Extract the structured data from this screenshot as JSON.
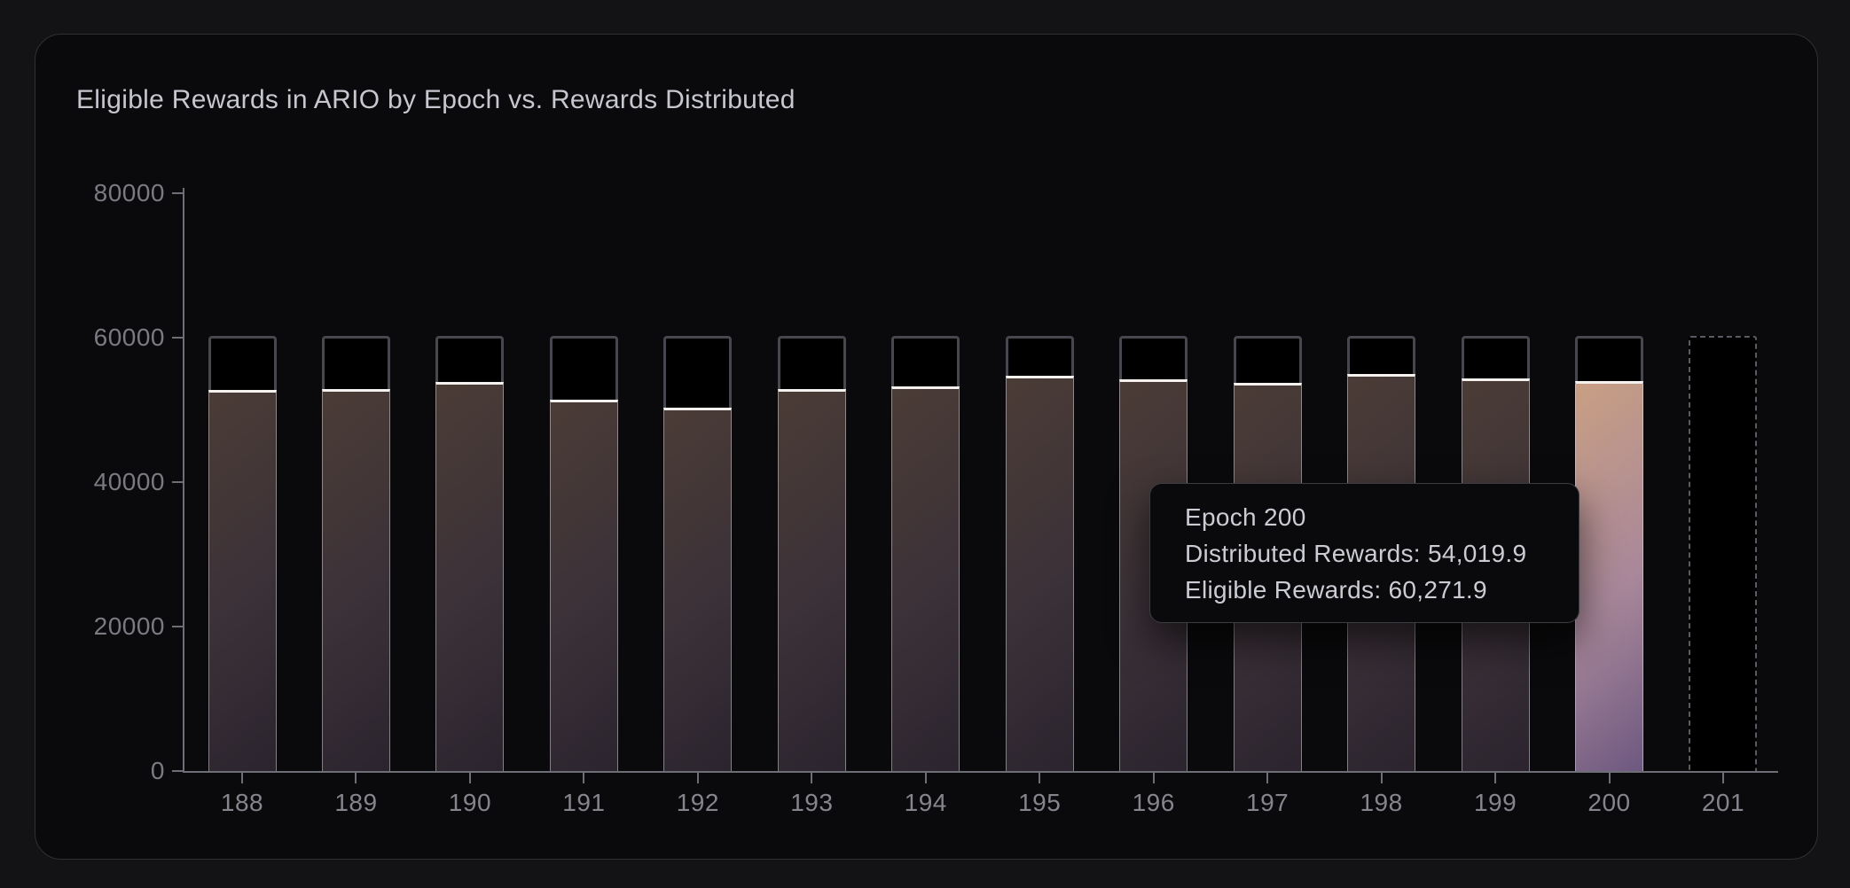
{
  "card": {
    "title": "Eligible Rewards in ARIO by Epoch vs. Rewards Distributed"
  },
  "tooltip": {
    "title": "Epoch 200",
    "distributed": "Distributed Rewards: 54,019.9",
    "eligible": "Eligible Rewards: 60,271.9"
  },
  "chart_data": {
    "type": "bar",
    "title": "Eligible Rewards in ARIO by Epoch vs. Rewards Distributed",
    "xlabel": "",
    "ylabel": "",
    "categories": [
      188,
      189,
      190,
      191,
      192,
      193,
      194,
      195,
      196,
      197,
      198,
      199,
      200,
      201
    ],
    "series": [
      {
        "name": "Eligible Rewards",
        "values": [
          60250,
          60250,
          60250,
          60250,
          60250,
          60250,
          60250,
          60250,
          60250,
          60250,
          60250,
          60250,
          60271.9,
          60300
        ]
      },
      {
        "name": "Distributed Rewards",
        "values": [
          52800,
          52900,
          53900,
          51400,
          50300,
          52900,
          53300,
          54700,
          54200,
          53700,
          55000,
          54400,
          54019.9,
          null
        ]
      }
    ],
    "ylim": [
      0,
      80000
    ],
    "yticks": [
      0,
      20000,
      40000,
      60000,
      80000
    ],
    "highlighted_category": 200,
    "pending_category": 201,
    "grid": false,
    "legend_position": "none",
    "notes": "Bars outlined in gray with black fill show eligible rewards; inner gradient bars with white top edge show distributed rewards. Epoch 200 is hover-highlighted with a light tan-to-purple gradient. Epoch 201 is a dashed-outline pending bar with no distributed value."
  },
  "colors": {
    "page_bg": "#131315",
    "card_bg": "#0a0a0c",
    "card_border": "#2f2f35",
    "title_text": "#c6c7cf",
    "axis_line": "#6e6e76",
    "y_label": "#7a7a82",
    "x_label": "#85858d",
    "eligible_outline": "#47474f",
    "eligible_fill": "#000000",
    "bar_gradient_top": "#4b3c36",
    "bar_gradient_mid": "#3b3138",
    "bar_gradient_bottom": "#2b242e",
    "bar_top_line": "#f4f1ee",
    "highlight_gradient_top": "#c99f83",
    "highlight_gradient_mid": "#a8879a",
    "highlight_gradient_bottom": "#6d5880",
    "tooltip_bg": "#0a0a0c",
    "tooltip_border": "#3c3c43",
    "tooltip_text": "#cbccd4",
    "pending_outline": "#5a5a62"
  }
}
